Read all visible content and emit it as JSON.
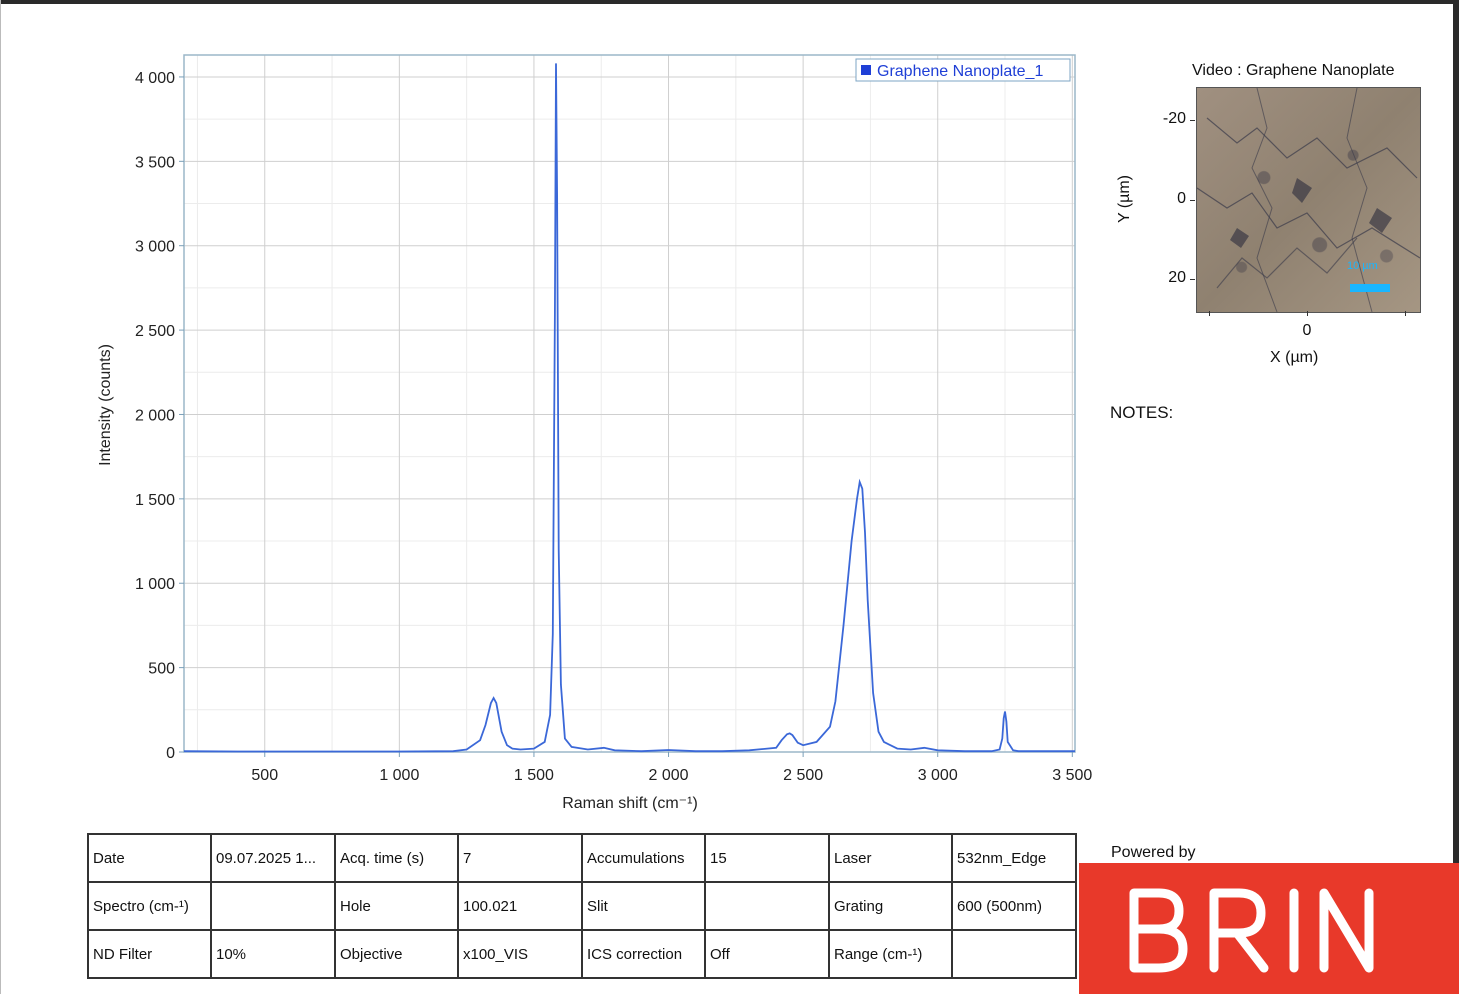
{
  "chart_data": {
    "type": "line",
    "xlabel": "Raman shift (cm⁻¹)",
    "ylabel": "Intensity (counts)",
    "xlim": [
      200,
      3510
    ],
    "ylim": [
      0,
      4130
    ],
    "x_ticks": [
      500,
      1000,
      1500,
      2000,
      2500,
      3000,
      3500
    ],
    "x_tick_labels": [
      "500",
      "1 000",
      "1 500",
      "2 000",
      "2 500",
      "3 000",
      "3 500"
    ],
    "y_ticks": [
      0,
      500,
      1000,
      1500,
      2000,
      2500,
      3000,
      3500,
      4000
    ],
    "y_tick_labels": [
      "0",
      "500",
      "1 000",
      "1 500",
      "2 000",
      "2 500",
      "3 000",
      "3 500",
      "4 000"
    ],
    "grid": true,
    "legend_position": "top-right",
    "series": [
      {
        "name": "Graphene Nanoplate_1",
        "color": "#3b68d8",
        "x": [
          200,
          400,
          600,
          800,
          1000,
          1200,
          1250,
          1300,
          1320,
          1340,
          1350,
          1360,
          1380,
          1400,
          1420,
          1450,
          1500,
          1540,
          1560,
          1570,
          1578,
          1582,
          1586,
          1592,
          1600,
          1615,
          1640,
          1700,
          1760,
          1800,
          1900,
          2000,
          2100,
          2200,
          2300,
          2400,
          2420,
          2440,
          2450,
          2460,
          2480,
          2500,
          2550,
          2600,
          2620,
          2650,
          2680,
          2700,
          2710,
          2720,
          2730,
          2740,
          2760,
          2780,
          2800,
          2850,
          2900,
          2950,
          3000,
          3100,
          3200,
          3230,
          3240,
          3245,
          3250,
          3255,
          3260,
          3280,
          3300,
          3400,
          3510
        ],
        "y": [
          5,
          3,
          3,
          3,
          3,
          5,
          15,
          70,
          160,
          290,
          320,
          290,
          120,
          40,
          20,
          15,
          20,
          60,
          220,
          700,
          2600,
          4080,
          3300,
          1200,
          400,
          80,
          30,
          15,
          25,
          10,
          5,
          12,
          5,
          5,
          10,
          25,
          70,
          105,
          110,
          100,
          55,
          40,
          60,
          150,
          300,
          750,
          1250,
          1500,
          1600,
          1560,
          1300,
          900,
          350,
          120,
          60,
          20,
          15,
          25,
          10,
          5,
          5,
          15,
          80,
          200,
          240,
          180,
          60,
          10,
          5,
          5,
          5
        ]
      }
    ]
  },
  "video_panel": {
    "title": "Video : Graphene Nanoplate",
    "y_label": "Y (µm)",
    "x_label": "X (µm)",
    "y_ticks": [
      "-20",
      "0",
      "20"
    ],
    "x_ticks": [
      "0"
    ],
    "scale_bar_label": "10 µm"
  },
  "notes": {
    "label": "NOTES:"
  },
  "info_table": [
    [
      "Date",
      "09.07.2025 1...",
      "Acq. time (s)",
      "7",
      "Accumulations",
      "15",
      "Laser",
      "532nm_Edge"
    ],
    [
      "Spectro (cm-¹)",
      "",
      "Hole",
      "100.021",
      "Slit",
      "",
      "Grating",
      "600 (500nm)"
    ],
    [
      "ND Filter",
      "10%",
      "Objective",
      "x100_VIS",
      "ICS correction",
      "Off",
      "Range (cm-¹)",
      ""
    ]
  ],
  "footer": {
    "powered_by": "Powered by",
    "logo_text": "BRIN"
  }
}
